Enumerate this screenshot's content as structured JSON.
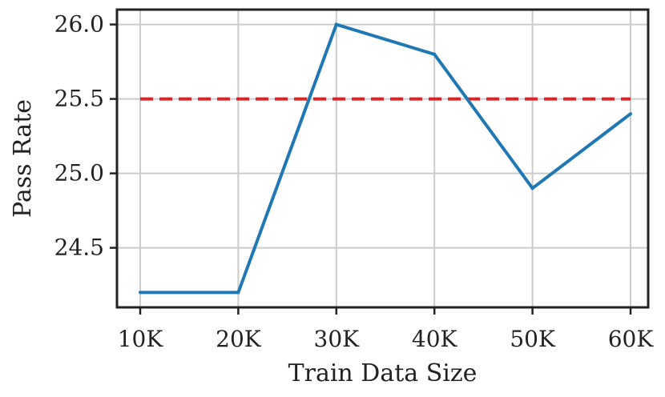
{
  "chart_data": {
    "type": "line",
    "title": "",
    "xlabel": "Train Data Size",
    "ylabel": "Pass Rate",
    "categories": [
      "10K",
      "20K",
      "30K",
      "40K",
      "50K",
      "60K"
    ],
    "series": [
      {
        "values": [
          24.2,
          24.2,
          26.0,
          25.8,
          24.9,
          25.4
        ],
        "color": "#1f77b4",
        "style": "solid"
      }
    ],
    "reference_line": {
      "y": 25.5,
      "color": "#d62728",
      "style": "dashed"
    },
    "ylim": [
      24.1,
      26.1
    ],
    "yticks": [
      24.5,
      25.0,
      25.5,
      26.0
    ],
    "ytick_labels": [
      "24.5",
      "25.0",
      "25.5",
      "26.0"
    ],
    "grid": true,
    "legend": "none"
  }
}
